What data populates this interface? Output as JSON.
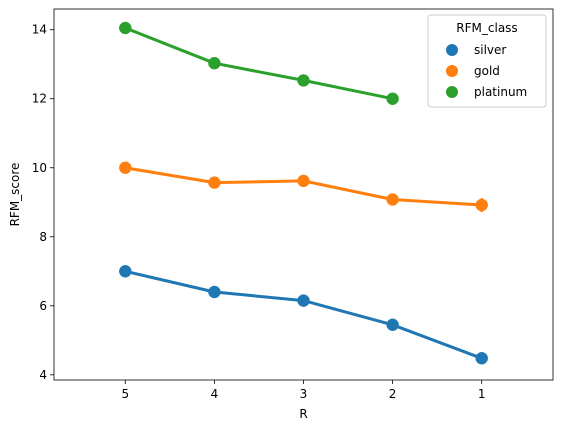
{
  "chart_data": {
    "type": "line",
    "subtype": "pointplot",
    "xlabel": "R",
    "ylabel": "RFM_score",
    "categories": [
      "5",
      "4",
      "3",
      "2",
      "1"
    ],
    "ylim": [
      3.85,
      14.6
    ],
    "yticks": [
      4,
      6,
      8,
      10,
      12,
      14
    ],
    "grid": false,
    "legend": {
      "title": "RFM_class",
      "placement": "top-right"
    },
    "series": [
      {
        "name": "silver",
        "color": "#1f77b4",
        "values": [
          7.0,
          6.4,
          6.15,
          5.45,
          4.48
        ],
        "errors": [
          0.0,
          0.0,
          0.0,
          0.0,
          0.0
        ]
      },
      {
        "name": "gold",
        "color": "#ff7f0e",
        "values": [
          10.0,
          9.57,
          9.62,
          9.08,
          8.92
        ],
        "errors": [
          0.15,
          0.0,
          0.0,
          0.0,
          0.2
        ]
      },
      {
        "name": "platinum",
        "color": "#2ca02c",
        "values": [
          14.05,
          13.03,
          12.53,
          12.0,
          null
        ],
        "errors": [
          0.0,
          0.0,
          0.0,
          0.0,
          0.0
        ]
      }
    ]
  }
}
